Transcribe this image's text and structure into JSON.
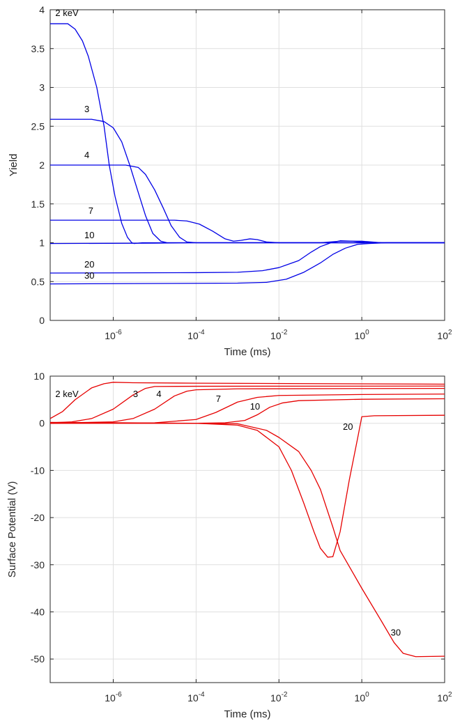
{
  "chart_data": [
    {
      "type": "line",
      "xlabel": "Time (ms)",
      "ylabel": "Yield",
      "xscale": "log",
      "xlim": [
        3e-08,
        100
      ],
      "ylim": [
        0,
        4
      ],
      "grid": true,
      "color": "#0000e6",
      "xticks": [
        {
          "base": "10",
          "exp": "-6",
          "value": 1e-06
        },
        {
          "base": "10",
          "exp": "-4",
          "value": 0.0001
        },
        {
          "base": "10",
          "exp": "-2",
          "value": 0.01
        },
        {
          "base": "10",
          "exp": "0",
          "value": 1
        },
        {
          "base": "10",
          "exp": "2",
          "value": 100
        }
      ],
      "yticks": [
        "0",
        "0.5",
        "1",
        "1.5",
        "2",
        "2.5",
        "3",
        "3.5",
        "4"
      ],
      "series": [
        {
          "name": "2 keV",
          "label_at": [
            4e-08,
            3.92
          ],
          "points": [
            [
              3e-08,
              3.82
            ],
            [
              8e-08,
              3.82
            ],
            [
              1.2e-07,
              3.75
            ],
            [
              1.8e-07,
              3.6
            ],
            [
              2.5e-07,
              3.4
            ],
            [
              4e-07,
              3.0
            ],
            [
              6e-07,
              2.5
            ],
            [
              8e-07,
              2.0
            ],
            [
              1.1e-06,
              1.6
            ],
            [
              1.6e-06,
              1.25
            ],
            [
              2.2e-06,
              1.07
            ],
            [
              2.8e-06,
              1.0
            ],
            [
              3.2e-06,
              0.99
            ],
            [
              5e-06,
              1.0
            ],
            [
              0.0001,
              1.0
            ],
            [
              100,
              1.0
            ]
          ]
        },
        {
          "name": "3",
          "label_at": [
            2e-07,
            2.68
          ],
          "points": [
            [
              3e-08,
              2.59
            ],
            [
              3e-07,
              2.59
            ],
            [
              6e-07,
              2.56
            ],
            [
              1e-06,
              2.48
            ],
            [
              1.6e-06,
              2.3
            ],
            [
              2.5e-06,
              2.0
            ],
            [
              4e-06,
              1.65
            ],
            [
              6e-06,
              1.35
            ],
            [
              9e-06,
              1.12
            ],
            [
              1.4e-05,
              1.02
            ],
            [
              2e-05,
              1.0
            ],
            [
              100,
              1.0
            ]
          ]
        },
        {
          "name": "4",
          "label_at": [
            2e-07,
            2.09
          ],
          "points": [
            [
              3e-08,
              2.0
            ],
            [
              2e-06,
              2.0
            ],
            [
              4e-06,
              1.97
            ],
            [
              6e-06,
              1.88
            ],
            [
              1e-05,
              1.68
            ],
            [
              1.6e-05,
              1.45
            ],
            [
              2.5e-05,
              1.22
            ],
            [
              4e-05,
              1.07
            ],
            [
              6e-05,
              1.01
            ],
            [
              0.0001,
              1.0
            ],
            [
              100,
              1.0
            ]
          ]
        },
        {
          "name": "7",
          "label_at": [
            2.5e-07,
            1.37
          ],
          "points": [
            [
              3e-08,
              1.29
            ],
            [
              3e-05,
              1.29
            ],
            [
              6e-05,
              1.28
            ],
            [
              0.00012,
              1.24
            ],
            [
              0.00025,
              1.15
            ],
            [
              0.0005,
              1.05
            ],
            [
              0.0008,
              1.02
            ],
            [
              0.0012,
              1.03
            ],
            [
              0.002,
              1.05
            ],
            [
              0.003,
              1.04
            ],
            [
              0.005,
              1.01
            ],
            [
              0.01,
              1.0
            ],
            [
              100,
              1.0
            ]
          ]
        },
        {
          "name": "10",
          "label_at": [
            2e-07,
            1.06
          ],
          "points": [
            [
              3e-08,
              0.99
            ],
            [
              1e-05,
              0.995
            ],
            [
              0.0001,
              1.0
            ],
            [
              0.01,
              1.0
            ],
            [
              0.1,
              1.0
            ],
            [
              0.3,
              1.02
            ],
            [
              1,
              1.02
            ],
            [
              3,
              1.0
            ],
            [
              100,
              1.0
            ]
          ]
        },
        {
          "name": "20",
          "label_at": [
            2e-07,
            0.68
          ],
          "points": [
            [
              3e-08,
              0.61
            ],
            [
              0.0001,
              0.615
            ],
            [
              0.001,
              0.62
            ],
            [
              0.004,
              0.64
            ],
            [
              0.01,
              0.68
            ],
            [
              0.03,
              0.77
            ],
            [
              0.06,
              0.88
            ],
            [
              0.1,
              0.95
            ],
            [
              0.18,
              1.0
            ],
            [
              0.3,
              1.025
            ],
            [
              0.6,
              1.02
            ],
            [
              1.2,
              1.005
            ],
            [
              3,
              1.0
            ],
            [
              100,
              1.0
            ]
          ]
        },
        {
          "name": "30",
          "label_at": [
            2e-07,
            0.54
          ],
          "points": [
            [
              3e-08,
              0.47
            ],
            [
              0.001,
              0.48
            ],
            [
              0.005,
              0.49
            ],
            [
              0.015,
              0.53
            ],
            [
              0.04,
              0.62
            ],
            [
              0.1,
              0.74
            ],
            [
              0.2,
              0.85
            ],
            [
              0.4,
              0.93
            ],
            [
              0.8,
              0.98
            ],
            [
              1.5,
              0.99
            ],
            [
              4,
              1.0
            ],
            [
              100,
              1.0
            ]
          ]
        }
      ]
    },
    {
      "type": "line",
      "xlabel": "Time (ms)",
      "ylabel": "Surface Potential (V)",
      "xscale": "log",
      "xlim": [
        3e-08,
        100
      ],
      "ylim": [
        -55,
        10
      ],
      "grid": true,
      "color": "#e60000",
      "xticks": [
        {
          "base": "10",
          "exp": "-6",
          "value": 1e-06
        },
        {
          "base": "10",
          "exp": "-4",
          "value": 0.0001
        },
        {
          "base": "10",
          "exp": "-2",
          "value": 0.01
        },
        {
          "base": "10",
          "exp": "0",
          "value": 1
        },
        {
          "base": "10",
          "exp": "2",
          "value": 100
        }
      ],
      "yticks": [
        "-50",
        "-40",
        "-30",
        "-20",
        "-10",
        "0",
        "10"
      ],
      "series": [
        {
          "name": "2 keV",
          "label_at": [
            4e-08,
            5.6
          ],
          "points": [
            [
              3e-08,
              1.0
            ],
            [
              6e-08,
              2.5
            ],
            [
              1.2e-07,
              5.0
            ],
            [
              3e-07,
              7.5
            ],
            [
              6e-07,
              8.4
            ],
            [
              1e-06,
              8.7
            ],
            [
              3e-06,
              8.6
            ],
            [
              0.0001,
              8.5
            ],
            [
              100,
              8.3
            ]
          ]
        },
        {
          "name": "3",
          "label_at": [
            3e-06,
            5.6
          ],
          "points": [
            [
              3e-08,
              0.1
            ],
            [
              1e-07,
              0.3
            ],
            [
              3e-07,
              1.0
            ],
            [
              1e-06,
              3.0
            ],
            [
              3e-06,
              6.0
            ],
            [
              6e-06,
              7.4
            ],
            [
              1e-05,
              7.8
            ],
            [
              0.0001,
              7.85
            ],
            [
              100,
              7.9
            ]
          ]
        },
        {
          "name": "4",
          "label_at": [
            1.1e-05,
            5.6
          ],
          "points": [
            [
              3e-08,
              0.0
            ],
            [
              1e-06,
              0.3
            ],
            [
              3e-06,
              1.0
            ],
            [
              1e-05,
              3.0
            ],
            [
              3e-05,
              5.8
            ],
            [
              6e-05,
              6.8
            ],
            [
              0.0001,
              7.1
            ],
            [
              0.001,
              7.3
            ],
            [
              100,
              7.4
            ]
          ]
        },
        {
          "name": "7",
          "label_at": [
            0.0003,
            4.5
          ],
          "points": [
            [
              3e-08,
              0.0
            ],
            [
              1e-05,
              0.1
            ],
            [
              0.0001,
              0.8
            ],
            [
              0.0003,
              2.3
            ],
            [
              0.001,
              4.5
            ],
            [
              0.003,
              5.5
            ],
            [
              0.01,
              5.9
            ],
            [
              1,
              6.1
            ],
            [
              100,
              6.2
            ]
          ]
        },
        {
          "name": "10",
          "label_at": [
            0.002,
            2.9
          ],
          "points": [
            [
              3e-08,
              0.0
            ],
            [
              0.0001,
              0.0
            ],
            [
              0.0005,
              0.1
            ],
            [
              0.0015,
              0.6
            ],
            [
              0.003,
              1.8
            ],
            [
              0.006,
              3.4
            ],
            [
              0.012,
              4.3
            ],
            [
              0.03,
              4.8
            ],
            [
              1,
              5.1
            ],
            [
              100,
              5.2
            ]
          ]
        },
        {
          "name": "20",
          "label_at": [
            0.35,
            -1.4
          ],
          "points": [
            [
              3e-08,
              0.1
            ],
            [
              0.0001,
              0.0
            ],
            [
              0.001,
              -0.4
            ],
            [
              0.003,
              -1.5
            ],
            [
              0.01,
              -5.0
            ],
            [
              0.02,
              -10.0
            ],
            [
              0.04,
              -17.0
            ],
            [
              0.07,
              -23.0
            ],
            [
              0.1,
              -26.5
            ],
            [
              0.15,
              -28.4
            ],
            [
              0.2,
              -28.3
            ],
            [
              0.3,
              -23.0
            ],
            [
              0.5,
              -12.0
            ],
            [
              0.8,
              -3.0
            ],
            [
              1,
              1.4
            ],
            [
              2,
              1.6
            ],
            [
              100,
              1.7
            ]
          ]
        },
        {
          "name": "30",
          "label_at": [
            5,
            -45
          ],
          "points": [
            [
              3e-08,
              0.2
            ],
            [
              0.0001,
              0.0
            ],
            [
              0.001,
              -0.1
            ],
            [
              0.005,
              -1.5
            ],
            [
              0.01,
              -3.0
            ],
            [
              0.03,
              -6.0
            ],
            [
              0.06,
              -10.0
            ],
            [
              0.1,
              -14.0
            ],
            [
              0.2,
              -22.0
            ],
            [
              0.3,
              -27.0
            ],
            [
              1,
              -35.0
            ],
            [
              3,
              -42.0
            ],
            [
              6,
              -46.5
            ],
            [
              10,
              -48.8
            ],
            [
              20,
              -49.5
            ],
            [
              100,
              -49.4
            ]
          ]
        }
      ]
    }
  ]
}
